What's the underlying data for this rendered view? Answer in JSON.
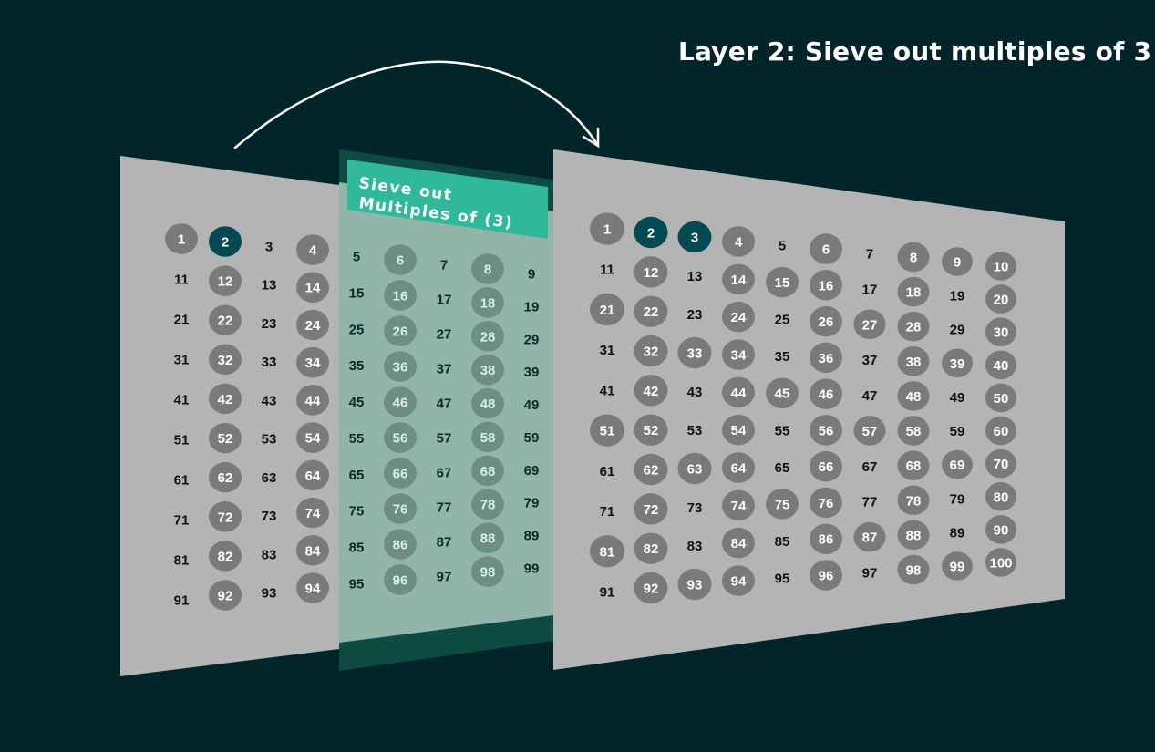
{
  "title": "Layer 2: Sieve out multiples of 3",
  "banner": {
    "line1": "Sieve out",
    "line2": "Multiples of (3)"
  },
  "colors": {
    "background": "#02252a",
    "panel": "#b4b4b4",
    "circle": "#7a7a7a",
    "highlight": "#054a52",
    "filter_frame": "#0d4a42",
    "filter_glass": "#92b5aa",
    "filter_circle": "#6e8d83",
    "banner": "#2fb99a"
  },
  "panels": [
    {
      "id": "left",
      "columns": [
        1,
        2,
        3,
        4
      ],
      "circled": "1 and even numbers",
      "highlighted": [
        2
      ]
    },
    {
      "id": "filter",
      "columns": [
        5,
        6,
        7,
        8,
        9
      ],
      "circled": "even numbers",
      "highlighted": []
    },
    {
      "id": "right",
      "columns": [
        1,
        2,
        3,
        4,
        5,
        6,
        7,
        8,
        9,
        10
      ],
      "circled": "1, even numbers, multiples of 3",
      "highlighted": [
        2,
        3
      ]
    }
  ],
  "arrow": {
    "icon": "curved-arrow-icon",
    "direction": "left-to-right"
  }
}
